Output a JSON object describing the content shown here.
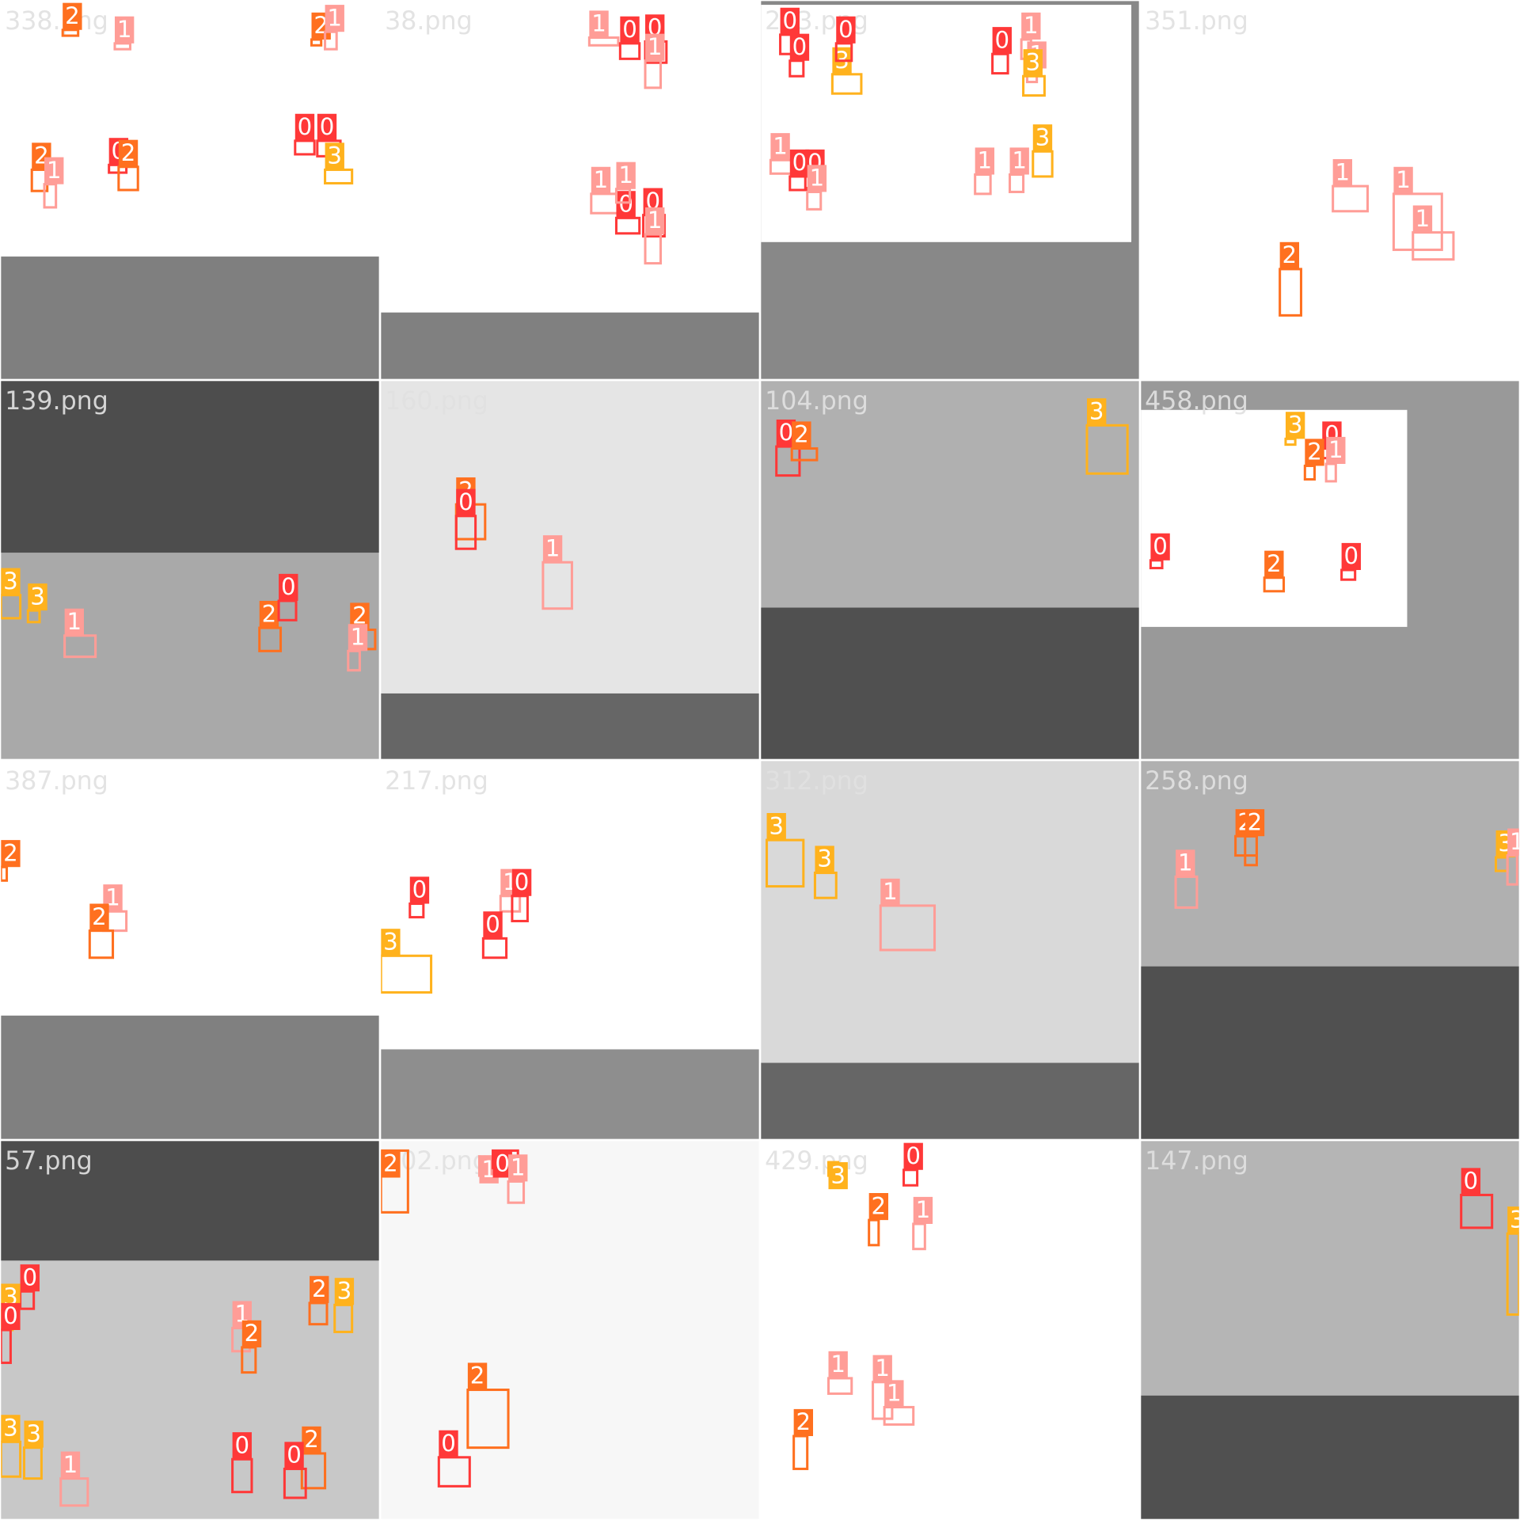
{
  "tiles": [
    {
      "name": "338.png",
      "labels": [
        "2",
        "1",
        "2",
        "1",
        "2",
        "1",
        "0",
        "2",
        "0",
        "0",
        "3"
      ]
    },
    {
      "name": "38.png",
      "labels": [
        "1",
        "0",
        "0",
        "1",
        "1",
        "0",
        "0",
        "1",
        "1"
      ]
    },
    {
      "name": "223.png",
      "labels": [
        "0",
        "0",
        "3",
        "0",
        "0",
        "1",
        "1",
        "3",
        "1",
        "0",
        "0",
        "1",
        "1",
        "1",
        "3"
      ]
    },
    {
      "name": "351.png",
      "labels": [
        "1",
        "1",
        "1",
        "2"
      ]
    },
    {
      "name": "139.png",
      "labels": [
        "3",
        "3",
        "1",
        "2",
        "0",
        "2",
        "1"
      ]
    },
    {
      "name": "160.png",
      "labels": [
        "2",
        "0",
        "1"
      ]
    },
    {
      "name": "104.png",
      "labels": [
        "0",
        "2",
        "3"
      ]
    },
    {
      "name": "458.png",
      "labels": [
        "3",
        "0",
        "2",
        "1",
        "0",
        "2",
        "0"
      ]
    },
    {
      "name": "387.png",
      "labels": [
        "2",
        "1",
        "2"
      ]
    },
    {
      "name": "217.png",
      "labels": [
        "0",
        "3",
        "1",
        "0",
        "0"
      ]
    },
    {
      "name": "312.png",
      "labels": [
        "3",
        "3",
        "1"
      ]
    },
    {
      "name": "258.png",
      "labels": [
        "1",
        "2",
        "2",
        "3",
        "1"
      ]
    },
    {
      "name": "57.png",
      "labels": [
        "0",
        "3",
        "0",
        "1",
        "2",
        "2",
        "3",
        "3",
        "3",
        "1",
        "0",
        "2",
        "0"
      ]
    },
    {
      "name": "302.png",
      "labels": [
        "2",
        "1",
        "0",
        "1",
        "2",
        "0"
      ]
    },
    {
      "name": "429.png",
      "labels": [
        "3",
        "0",
        "2",
        "1",
        "1",
        "1",
        "1",
        "2"
      ]
    },
    {
      "name": "147.png",
      "labels": [
        "0",
        "3"
      ]
    }
  ]
}
